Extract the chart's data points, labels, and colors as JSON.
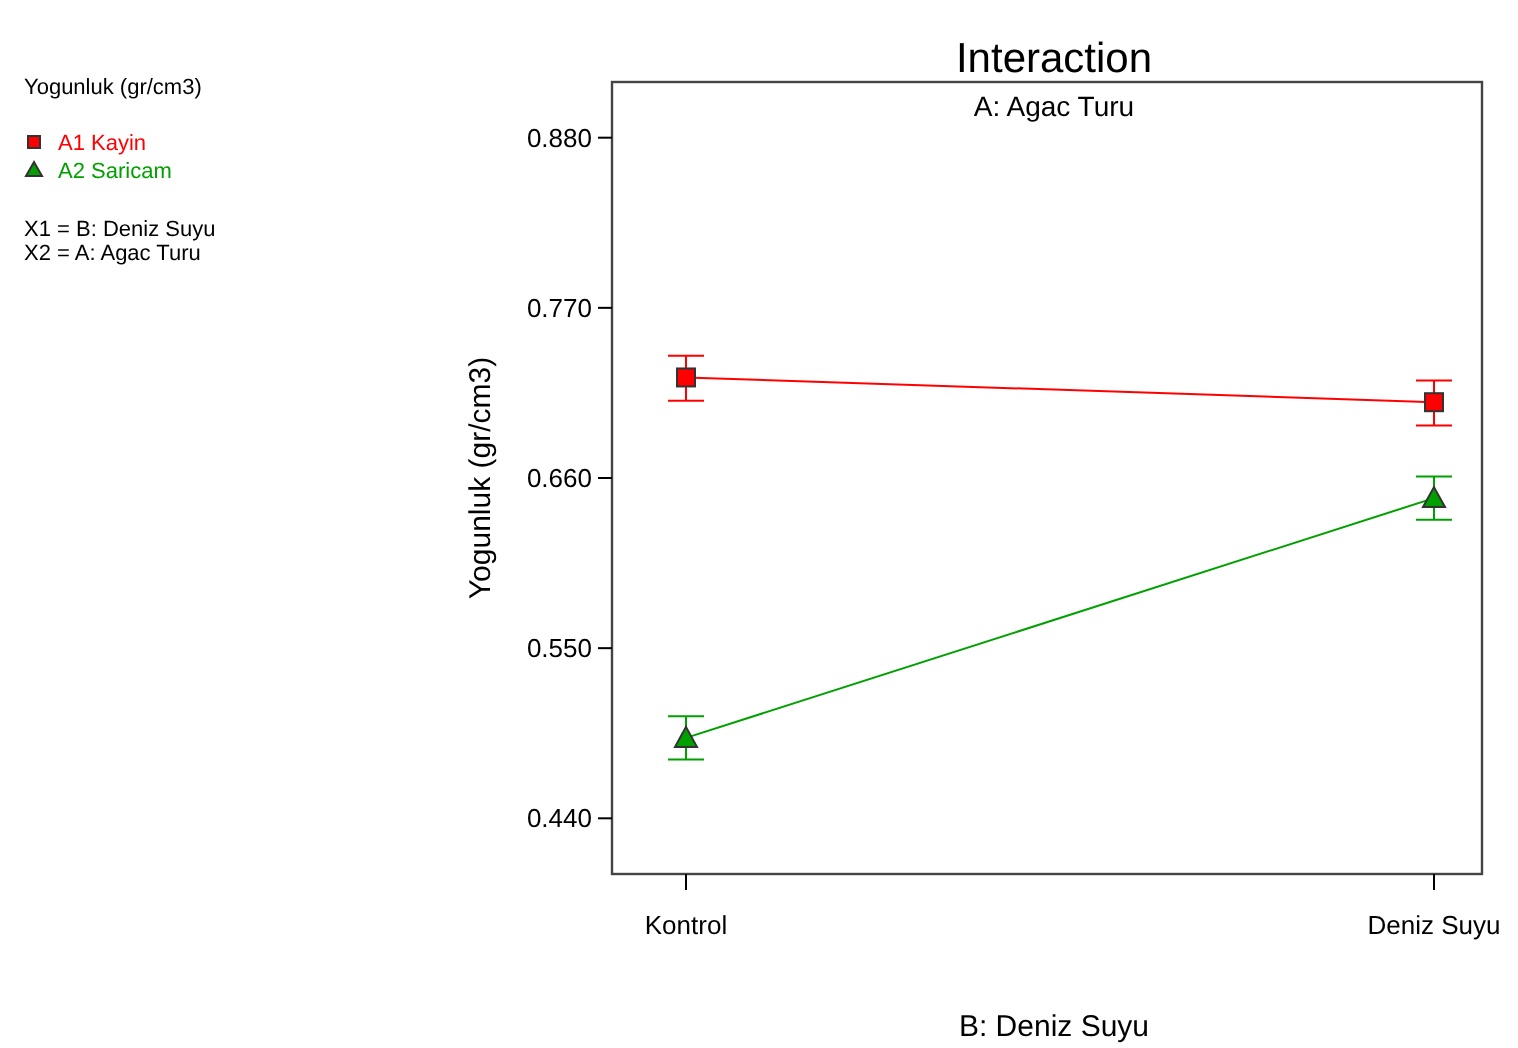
{
  "chart_data": {
    "type": "line",
    "title": "Interaction",
    "subtitle": "A: Agac Turu",
    "xlabel": "B: Deniz Suyu",
    "ylabel": "Yogunluk (gr/cm3)",
    "annotations": [
      "Yogunluk (gr/cm3)",
      "X1 = B: Deniz Suyu",
      "X2 = A: Agac Turu"
    ],
    "categories": [
      "Kontrol",
      "Deniz Suyu"
    ],
    "series": [
      {
        "name": "A1 Kayin",
        "color": "#ff0000",
        "marker": "square",
        "values": [
          0.725,
          0.709
        ],
        "errors": [
          [
            0.71,
            0.739
          ],
          [
            0.694,
            0.723
          ]
        ]
      },
      {
        "name": "A2 Saricam",
        "color": "#00a000",
        "marker": "triangle",
        "values": [
          0.492,
          0.647
        ],
        "errors": [
          [
            0.478,
            0.506
          ],
          [
            0.633,
            0.661
          ]
        ]
      }
    ],
    "ylim": [
      0.404,
      0.916
    ],
    "yticks": [
      {
        "value": 0.44,
        "label": "0.440"
      },
      {
        "value": 0.55,
        "label": "0.550"
      },
      {
        "value": 0.66,
        "label": "0.660"
      },
      {
        "value": 0.77,
        "label": "0.770"
      },
      {
        "value": 0.88,
        "label": "0.880"
      }
    ],
    "grid": false,
    "legend": "top left",
    "line_style": "solid"
  }
}
